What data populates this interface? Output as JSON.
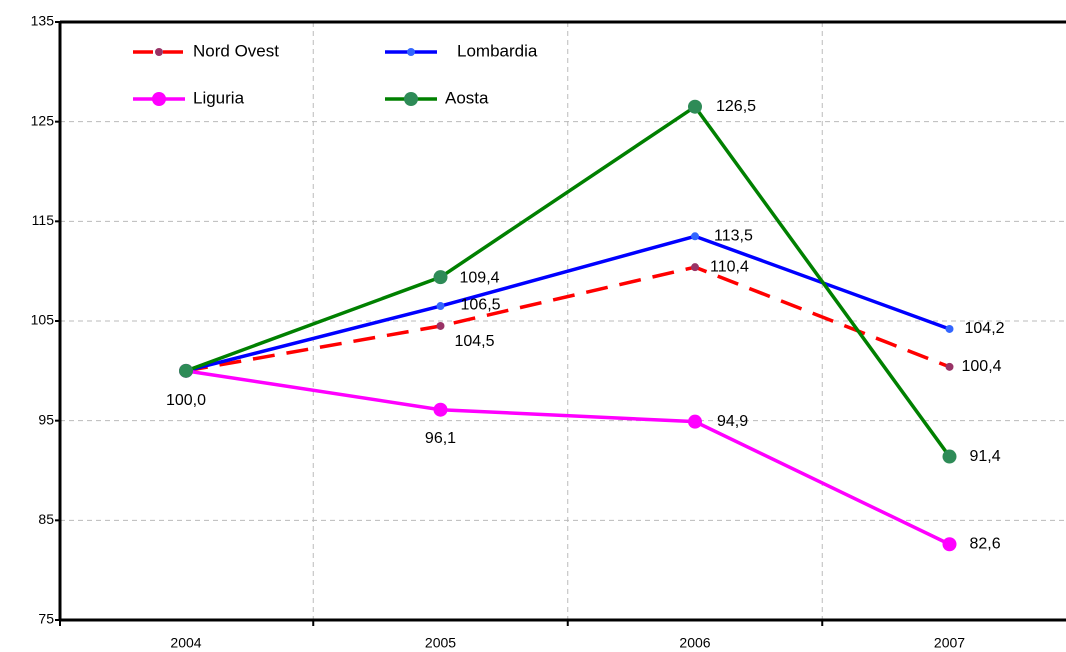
{
  "chart_data": {
    "type": "line",
    "categories": [
      "2004",
      "2005",
      "2006",
      "2007"
    ],
    "ylim": [
      75,
      135
    ],
    "yticks": [
      75,
      85,
      95,
      105,
      115,
      125,
      135
    ],
    "grid": true,
    "legend": "top-left",
    "series": [
      {
        "name": "Nord Ovest",
        "color": "#ff0000",
        "marker_color": "#993366",
        "dashed": true,
        "marker": "small",
        "values": [
          100.0,
          104.5,
          110.4,
          100.4
        ],
        "value_labels": [
          null,
          "104,5",
          "110,4",
          "100,4"
        ]
      },
      {
        "name": "Lombardia",
        "color": "#0000ff",
        "marker_color": "#3366ff",
        "dashed": false,
        "marker": "small",
        "values": [
          100.0,
          106.5,
          113.5,
          104.2
        ],
        "value_labels": [
          null,
          "106,5",
          "113,5",
          "104,2"
        ]
      },
      {
        "name": "Liguria",
        "color": "#ff00ff",
        "marker_color": "#ff00ff",
        "dashed": false,
        "marker": "large",
        "values": [
          100.0,
          96.1,
          94.9,
          82.6
        ],
        "value_labels": [
          "100,0",
          "96,1",
          "94,9",
          "82,6"
        ]
      },
      {
        "name": "Aosta",
        "color": "#008000",
        "marker_color": "#2e8b57",
        "dashed": false,
        "marker": "large",
        "values": [
          100.0,
          109.4,
          126.5,
          91.4
        ],
        "value_labels": [
          null,
          "109,4",
          "126,5",
          "91,4"
        ]
      }
    ]
  }
}
